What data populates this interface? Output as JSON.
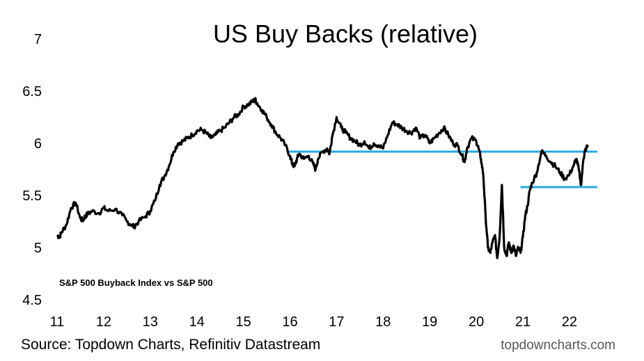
{
  "chart_data": {
    "type": "line",
    "title": "US Buy Backs (relative)",
    "annotation": "S&P 500 Buyback Index vs S&P 500",
    "source": "Source: Topdown Charts, Refinitiv Datastream",
    "brand": "topdowncharts.com",
    "xlabel": "",
    "ylabel": "",
    "x_ticks": [
      "11",
      "12",
      "13",
      "14",
      "15",
      "16",
      "17",
      "18",
      "19",
      "20",
      "21",
      "22"
    ],
    "y_ticks": [
      "4.5",
      "5",
      "5.5",
      "6",
      "6.5",
      "7"
    ],
    "xlim": [
      2011,
      2022.6
    ],
    "ylim": [
      4.5,
      7
    ],
    "grid": false,
    "line_color": "#000000",
    "reference_color": "#29A8E0",
    "series": [
      {
        "x": [
          2011.0,
          2011.05,
          2011.1,
          2011.2,
          2011.3,
          2011.4,
          2011.5,
          2011.55,
          2011.6,
          2011.65,
          2011.75,
          2011.9,
          2012.0,
          2012.1,
          2012.25,
          2012.4,
          2012.5,
          2012.6,
          2012.65,
          2012.75,
          2012.9,
          2013.0,
          2013.1,
          2013.2,
          2013.3,
          2013.4,
          2013.5,
          2013.6,
          2013.7,
          2013.8,
          2013.9,
          2014.0,
          2014.1,
          2014.2,
          2014.3,
          2014.4,
          2014.5,
          2014.6,
          2014.7,
          2014.8,
          2014.9,
          2015.0,
          2015.1,
          2015.2,
          2015.25,
          2015.3,
          2015.4,
          2015.5,
          2015.6,
          2015.7,
          2015.8,
          2015.9,
          2016.0,
          2016.05,
          2016.1,
          2016.15,
          2016.2,
          2016.3,
          2016.4,
          2016.5,
          2016.55,
          2016.6,
          2016.7,
          2016.8,
          2016.85,
          2016.9,
          2017.0,
          2017.1,
          2017.2,
          2017.3,
          2017.4,
          2017.5,
          2017.6,
          2017.7,
          2017.8,
          2017.9,
          2018.0,
          2018.1,
          2018.2,
          2018.3,
          2018.4,
          2018.5,
          2018.6,
          2018.7,
          2018.8,
          2018.9,
          2019.0,
          2019.1,
          2019.2,
          2019.3,
          2019.4,
          2019.5,
          2019.6,
          2019.7,
          2019.75,
          2019.8,
          2019.9,
          2020.0,
          2020.05,
          2020.1,
          2020.15,
          2020.2,
          2020.25,
          2020.3,
          2020.35,
          2020.4,
          2020.45,
          2020.5,
          2020.55,
          2020.6,
          2020.65,
          2020.7,
          2020.75,
          2020.8,
          2020.85,
          2020.9,
          2020.95,
          2021.0,
          2021.05,
          2021.1,
          2021.15,
          2021.2,
          2021.3,
          2021.4,
          2021.5,
          2021.6,
          2021.7,
          2021.8,
          2021.9,
          2022.0,
          2022.1,
          2022.15,
          2022.2,
          2022.25,
          2022.3,
          2022.33,
          2022.36,
          2022.4
        ],
        "values": [
          5.12,
          5.1,
          5.15,
          5.22,
          5.38,
          5.43,
          5.28,
          5.26,
          5.3,
          5.32,
          5.35,
          5.33,
          5.38,
          5.35,
          5.37,
          5.31,
          5.25,
          5.22,
          5.2,
          5.25,
          5.3,
          5.35,
          5.45,
          5.6,
          5.68,
          5.78,
          5.92,
          6.0,
          6.02,
          6.05,
          6.08,
          6.12,
          6.13,
          6.1,
          6.05,
          6.08,
          6.12,
          6.15,
          6.2,
          6.25,
          6.28,
          6.35,
          6.37,
          6.4,
          6.42,
          6.38,
          6.32,
          6.25,
          6.18,
          6.1,
          6.05,
          5.98,
          5.88,
          5.8,
          5.78,
          5.85,
          5.9,
          5.85,
          5.88,
          5.8,
          5.75,
          5.85,
          5.92,
          5.95,
          5.9,
          6.05,
          6.25,
          6.15,
          6.1,
          6.05,
          6.02,
          5.98,
          6.02,
          5.95,
          6.0,
          5.98,
          5.95,
          6.08,
          6.2,
          6.18,
          6.15,
          6.12,
          6.1,
          6.15,
          6.05,
          6.08,
          6.0,
          6.05,
          6.1,
          6.15,
          6.08,
          6.0,
          5.98,
          5.88,
          5.82,
          5.95,
          6.05,
          6.02,
          5.95,
          5.85,
          5.7,
          5.3,
          5.0,
          4.95,
          5.05,
          5.12,
          4.9,
          5.1,
          5.6,
          5.0,
          4.92,
          5.05,
          4.95,
          5.02,
          4.92,
          5.0,
          4.95,
          5.1,
          5.3,
          5.4,
          5.55,
          5.62,
          5.72,
          5.92,
          5.88,
          5.82,
          5.78,
          5.72,
          5.66,
          5.7,
          5.8,
          5.85,
          5.75,
          5.6,
          5.85,
          5.92,
          5.95,
          5.98
        ]
      }
    ],
    "reference_lines": [
      {
        "value": 5.92,
        "x_start": 2015.95,
        "x_end": 2022.6
      },
      {
        "value": 5.58,
        "x_start": 2020.95,
        "x_end": 2022.6
      }
    ]
  }
}
